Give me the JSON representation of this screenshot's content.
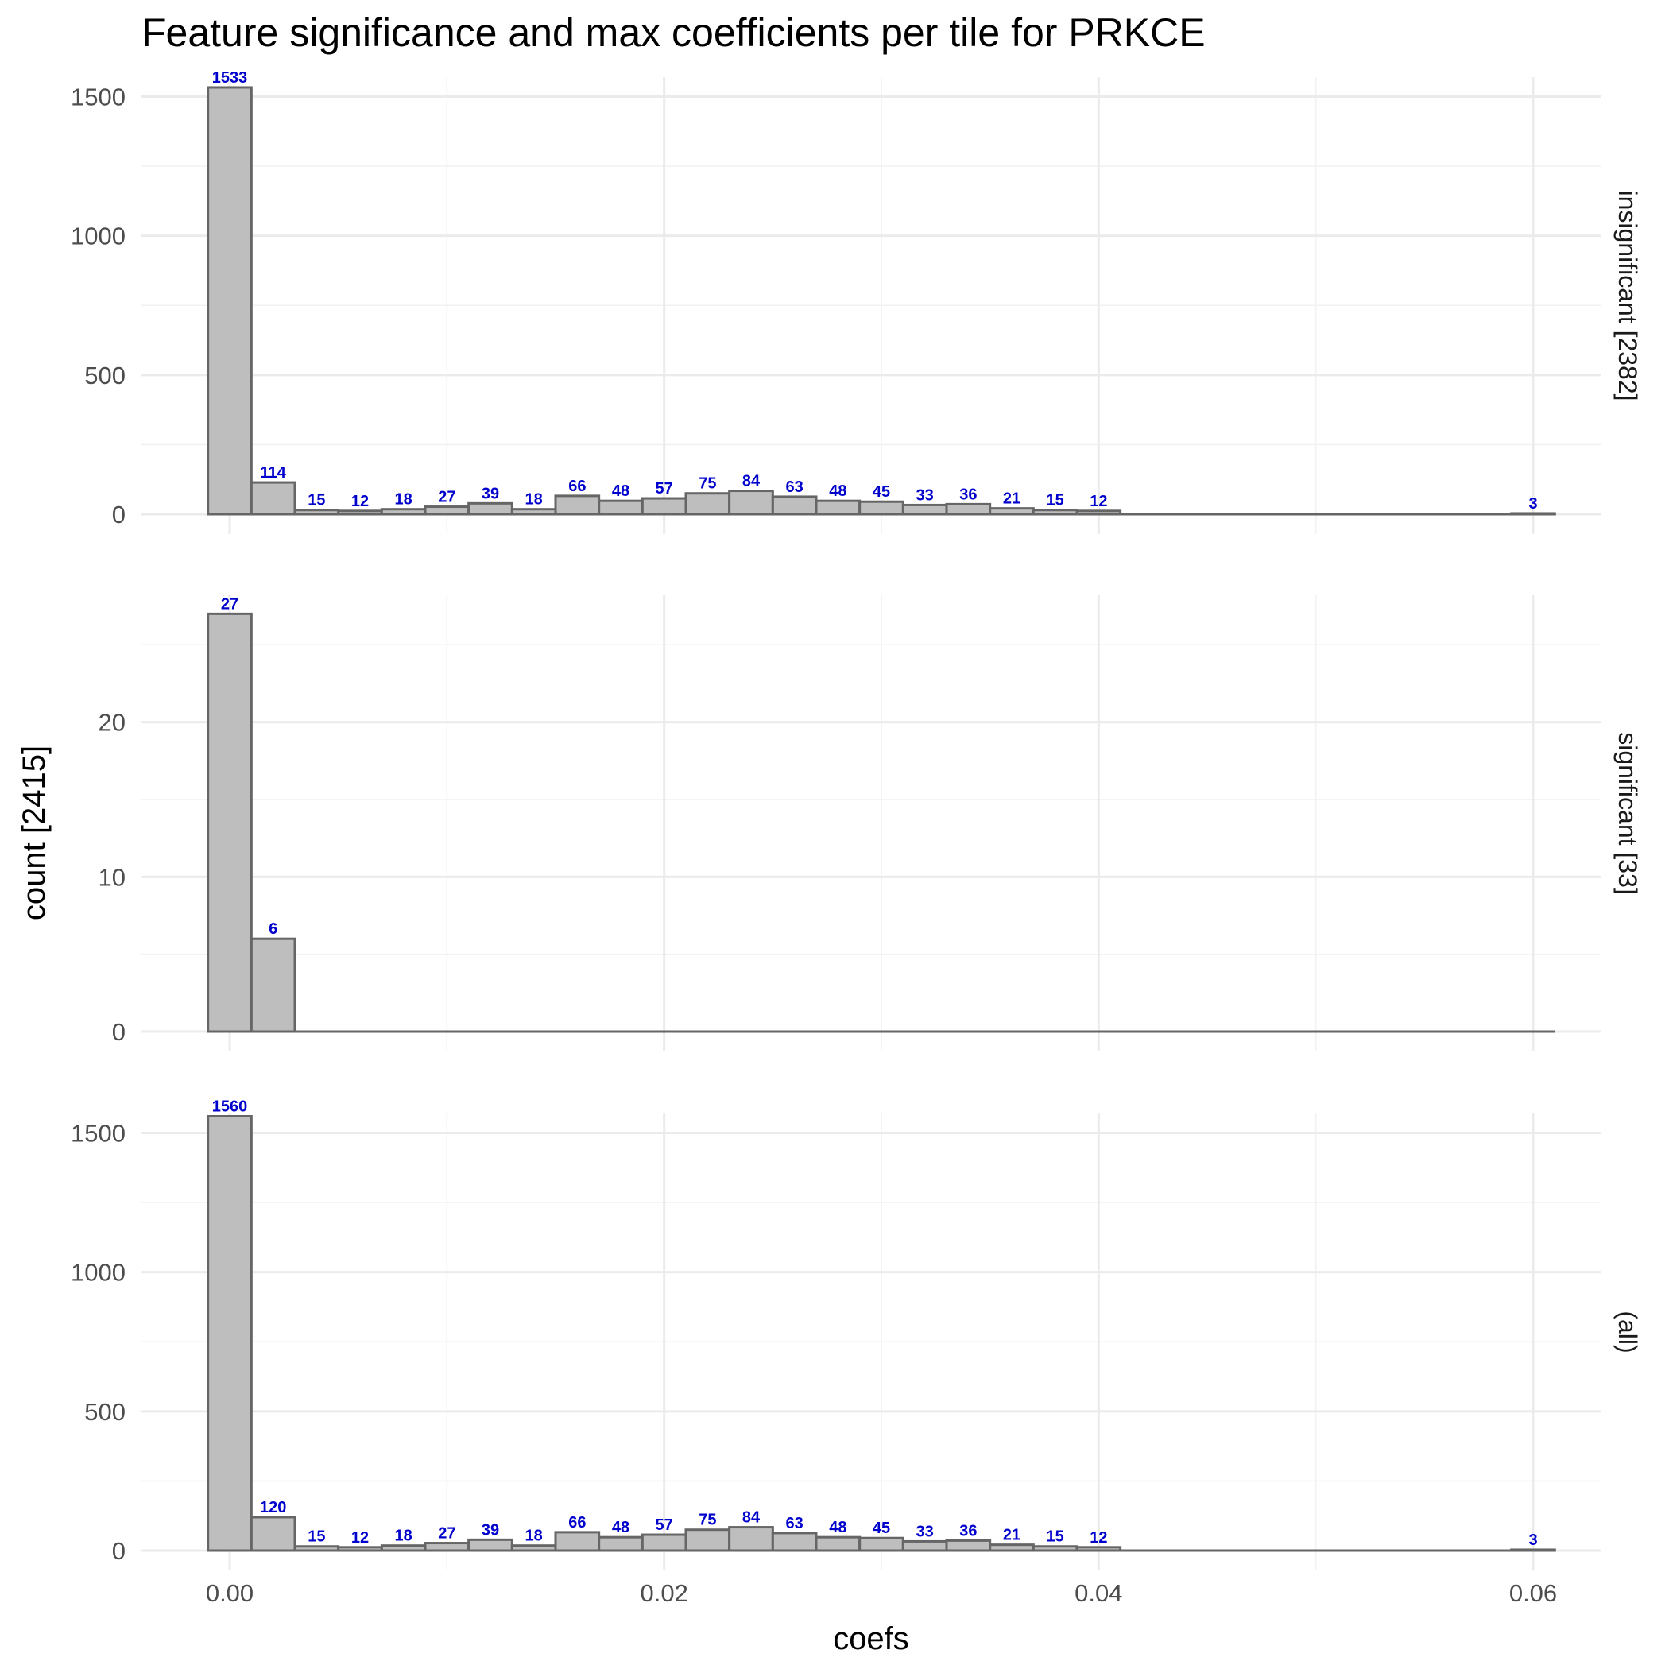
{
  "chart_data": {
    "type": "bar",
    "title": "Feature significance and max coefficients per tile for PRKCE",
    "xlabel": "coefs",
    "ylabel": "count [2415]",
    "xlim": [
      -0.004,
      0.063
    ],
    "x_ticks": [
      0.0,
      0.02,
      0.04,
      0.06
    ],
    "x_tick_labels": [
      "0.00",
      "0.02",
      "0.04",
      "0.06"
    ],
    "grid": true,
    "bar_fill": "#bebebe",
    "bar_outline": "#666666",
    "label_color": "#0000cc",
    "bin_width": 0.002,
    "bin_centers": [
      0.0,
      0.002,
      0.004,
      0.006,
      0.008,
      0.01,
      0.012,
      0.014,
      0.016,
      0.018,
      0.02,
      0.022,
      0.024,
      0.026,
      0.028,
      0.03,
      0.032,
      0.034,
      0.036,
      0.038,
      0.04,
      0.042,
      0.044,
      0.046,
      0.048,
      0.05,
      0.052,
      0.054,
      0.056,
      0.058,
      0.06
    ],
    "panels": [
      {
        "strip": "insignificant [2382]",
        "ylim": [
          0,
          1570
        ],
        "y_ticks": [
          0,
          500,
          1000,
          1500
        ],
        "y_tick_labels": [
          "0",
          "500",
          "1000",
          "1500"
        ],
        "values": [
          1533,
          114,
          15,
          12,
          18,
          27,
          39,
          18,
          66,
          48,
          57,
          75,
          84,
          63,
          48,
          45,
          33,
          36,
          21,
          15,
          12,
          0,
          0,
          0,
          0,
          0,
          0,
          0,
          0,
          0,
          3
        ],
        "labels": [
          "1533",
          "114",
          "15",
          "12",
          "18",
          "27",
          "39",
          "18",
          "66",
          "48",
          "57",
          "75",
          "84",
          "63",
          "48",
          "45",
          "33",
          "36",
          "21",
          "15",
          "12",
          "",
          "",
          "",
          "",
          "",
          "",
          "",
          "",
          "",
          "3"
        ]
      },
      {
        "strip": "significant [33]",
        "ylim": [
          0,
          28.2
        ],
        "y_ticks": [
          0,
          10,
          20
        ],
        "y_tick_labels": [
          "0",
          "10",
          "20"
        ],
        "values": [
          27,
          6,
          0,
          0,
          0,
          0,
          0,
          0,
          0,
          0,
          0,
          0,
          0,
          0,
          0,
          0,
          0,
          0,
          0,
          0,
          0,
          0,
          0,
          0,
          0,
          0,
          0,
          0,
          0,
          0,
          0
        ],
        "labels": [
          "27",
          "6",
          "",
          "",
          "",
          "",
          "",
          "",
          "",
          "",
          "",
          "",
          "",
          "",
          "",
          "",
          "",
          "",
          "",
          "",
          "",
          "",
          "",
          "",
          "",
          "",
          "",
          "",
          "",
          "",
          ""
        ]
      },
      {
        "strip": "(all)",
        "ylim": [
          0,
          1570
        ],
        "y_ticks": [
          0,
          500,
          1000,
          1500
        ],
        "y_tick_labels": [
          "0",
          "500",
          "1000",
          "1500"
        ],
        "values": [
          1560,
          120,
          15,
          12,
          18,
          27,
          39,
          18,
          66,
          48,
          57,
          75,
          84,
          63,
          48,
          45,
          33,
          36,
          21,
          15,
          12,
          0,
          0,
          0,
          0,
          0,
          0,
          0,
          0,
          0,
          3
        ],
        "labels": [
          "1560",
          "120",
          "15",
          "12",
          "18",
          "27",
          "39",
          "18",
          "66",
          "48",
          "57",
          "75",
          "84",
          "63",
          "48",
          "45",
          "33",
          "36",
          "21",
          "15",
          "12",
          "",
          "",
          "",
          "",
          "",
          "",
          "",
          "",
          "",
          "3"
        ]
      }
    ]
  }
}
